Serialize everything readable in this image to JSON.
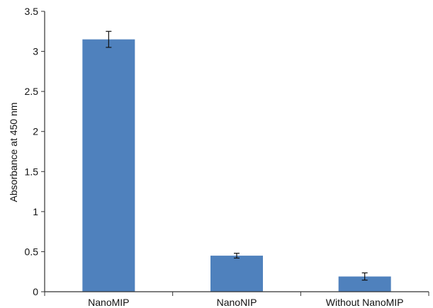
{
  "chart_data": {
    "type": "bar",
    "title": "",
    "xlabel": "",
    "ylabel": "Absorbance at 450 nm",
    "categories": [
      "NanoMIP",
      "NanoNIP",
      "Without NanoMIP"
    ],
    "values": [
      3.15,
      0.45,
      0.19
    ],
    "error": [
      0.1,
      0.03,
      0.045
    ],
    "ylim": [
      0,
      3.5
    ],
    "yticks": [
      0,
      0.5,
      1,
      1.5,
      2,
      2.5,
      3,
      3.5
    ],
    "ytick_labels": [
      "0",
      "0.5",
      "1",
      "1.5",
      "2",
      "2.5",
      "3",
      "3.5"
    ],
    "grid": false,
    "legend": "none",
    "colors": {
      "bar": "#4f81bd",
      "axis": "#333333",
      "error_bar": "#111111"
    }
  }
}
